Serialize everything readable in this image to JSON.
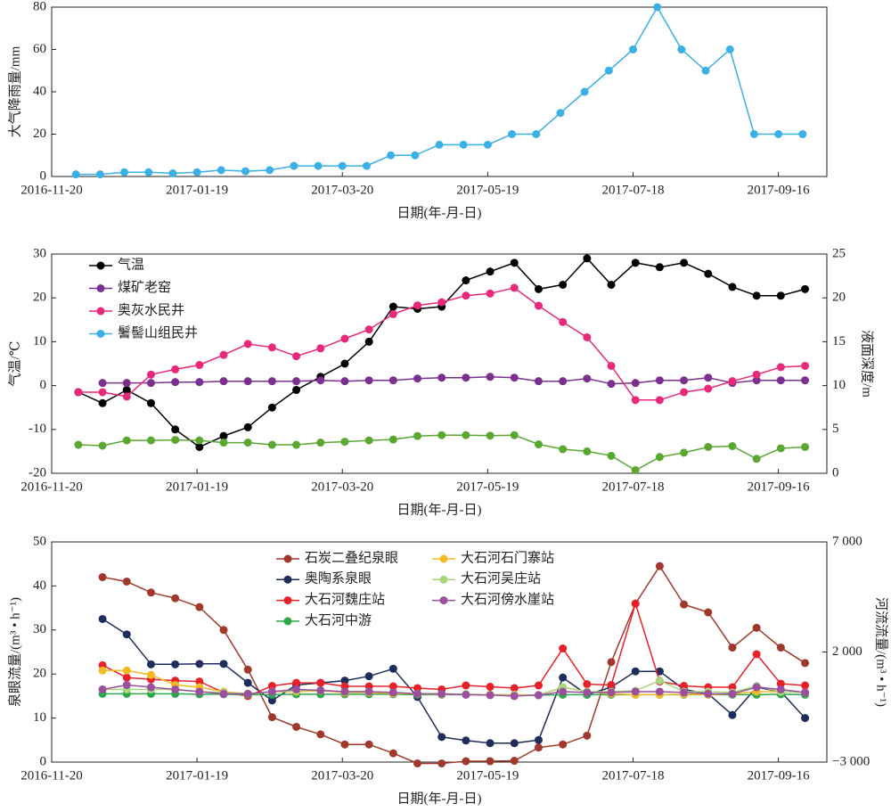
{
  "chart_data": [
    {
      "type": "line",
      "ylabel": "大气降雨量/mm",
      "xlabel": "日期(年-月-日)",
      "x": [
        "2016-11-30",
        "2016-12-10",
        "2016-12-20",
        "2016-12-30",
        "2017-01-09",
        "2017-01-19",
        "2017-01-29",
        "2017-02-08",
        "2017-02-18",
        "2017-02-28",
        "2017-03-10",
        "2017-03-20",
        "2017-03-30",
        "2017-04-09",
        "2017-04-19",
        "2017-04-29",
        "2017-05-09",
        "2017-05-19",
        "2017-05-29",
        "2017-06-08",
        "2017-06-18",
        "2017-06-28",
        "2017-07-08",
        "2017-07-18",
        "2017-07-28",
        "2017-08-07",
        "2017-08-17",
        "2017-08-27",
        "2017-09-06",
        "2017-09-16",
        "2017-09-26"
      ],
      "values": [
        1,
        1,
        2,
        2,
        1.5,
        2,
        3,
        2.5,
        3,
        5,
        5,
        5,
        5,
        10,
        10,
        15,
        15,
        15,
        20,
        20,
        30,
        40,
        50,
        60,
        80,
        60,
        50,
        60,
        20,
        20,
        20
      ],
      "color": "#3bb0e6",
      "xlim": [
        "2016-11-20",
        "2017-10-06"
      ],
      "xticks": [
        "2016-11-20",
        "2017-01-19",
        "2017-03-20",
        "2017-05-19",
        "2017-07-18",
        "2017-09-16"
      ],
      "ylim": [
        0,
        80
      ],
      "yticks": [
        0,
        20,
        40,
        60,
        80
      ]
    },
    {
      "type": "line",
      "ylabel": "气温/℃",
      "y2label": "液面深度/m",
      "xlabel": "日期(年-月-日)",
      "legend": "upper left",
      "x": [
        "2016-12-01",
        "2016-12-11",
        "2016-12-21",
        "2016-12-31",
        "2017-01-10",
        "2017-01-20",
        "2017-01-30",
        "2017-02-09",
        "2017-02-19",
        "2017-03-01",
        "2017-03-11",
        "2017-03-21",
        "2017-03-31",
        "2017-04-10",
        "2017-04-20",
        "2017-04-30",
        "2017-05-10",
        "2017-05-20",
        "2017-05-30",
        "2017-06-09",
        "2017-06-19",
        "2017-06-29",
        "2017-07-09",
        "2017-07-19",
        "2017-07-29",
        "2017-08-08",
        "2017-08-18",
        "2017-08-28",
        "2017-09-07",
        "2017-09-17",
        "2017-09-27"
      ],
      "series": [
        {
          "name": "气温",
          "color": "#000000",
          "values": [
            -1.5,
            -4,
            -1,
            -4,
            -10,
            -14,
            -11.5,
            -9.5,
            -5,
            -1,
            2,
            5,
            10,
            18,
            17.5,
            18,
            24,
            26,
            28,
            22,
            23,
            29,
            23,
            28,
            27,
            28,
            25.5,
            22.5,
            20.5,
            20.5,
            22
          ]
        },
        {
          "name": "煤矿老窑",
          "color": "#7b2f8e",
          "axis": "y2",
          "values": [
            null,
            10.3,
            10.3,
            10.3,
            10.4,
            10.4,
            10.5,
            10.5,
            10.5,
            10.5,
            10.6,
            10.5,
            10.6,
            10.6,
            10.8,
            10.9,
            10.9,
            11,
            10.9,
            10.5,
            10.5,
            10.8,
            10.2,
            10.3,
            10.6,
            10.6,
            10.9,
            10.3,
            10.6,
            10.6,
            10.6
          ]
        },
        {
          "name": "奥灰水民井",
          "color": "#e8287a",
          "axis": "y2",
          "values": [
            9.25,
            9.25,
            8.75,
            11.25,
            11.85,
            12.35,
            13.5,
            14.75,
            14.35,
            13.35,
            14.25,
            15.35,
            16.4,
            18.15,
            19.15,
            19.5,
            20.25,
            20.5,
            21.15,
            19.1,
            17.25,
            15.5,
            12.25,
            8.35,
            8.35,
            9.25,
            9.65,
            10.5,
            11.25,
            12.1,
            12.25
          ]
        },
        {
          "name": "鬐髻山组民井",
          "color": "#5aa832",
          "legend_color": "#3bb0e6",
          "axis": "y2",
          "values": [
            3.25,
            3.15,
            3.75,
            3.75,
            3.8,
            3.75,
            3.5,
            3.5,
            3.25,
            3.25,
            3.5,
            3.6,
            3.75,
            3.85,
            4.25,
            4.35,
            4.35,
            4.3,
            4.35,
            3.3,
            2.75,
            2.5,
            2,
            0.35,
            1.85,
            2.35,
            3,
            3.1,
            1.65,
            2.85,
            3
          ]
        }
      ],
      "xlim": [
        "2016-11-20",
        "2017-10-06"
      ],
      "xticks": [
        "2016-11-20",
        "2017-01-19",
        "2017-03-20",
        "2017-05-19",
        "2017-07-18",
        "2017-09-16"
      ],
      "ylim": [
        -20,
        30
      ],
      "yticks": [
        -20,
        -10,
        0,
        10,
        20,
        30
      ],
      "y2lim": [
        0,
        25
      ],
      "y2ticks": [
        0,
        5,
        10,
        15,
        20,
        25
      ]
    },
    {
      "type": "line",
      "ylabel": "泉眼流量/(m³ • h⁻¹)",
      "y2label": "河流流量/(m³ • h⁻¹)",
      "xlabel": "日期(年-月-日)",
      "legend": "upper center",
      "x": [
        "2016-12-01",
        "2016-12-11",
        "2016-12-21",
        "2016-12-31",
        "2017-01-10",
        "2017-01-20",
        "2017-01-30",
        "2017-02-09",
        "2017-02-19",
        "2017-03-01",
        "2017-03-11",
        "2017-03-21",
        "2017-03-31",
        "2017-04-10",
        "2017-04-20",
        "2017-04-30",
        "2017-05-10",
        "2017-05-20",
        "2017-05-30",
        "2017-06-09",
        "2017-06-19",
        "2017-06-29",
        "2017-07-09",
        "2017-07-19",
        "2017-07-29",
        "2017-08-08",
        "2017-08-18",
        "2017-08-28",
        "2017-09-07",
        "2017-09-17",
        "2017-09-27"
      ],
      "series": [
        {
          "name": "石炭二叠纪泉眼",
          "color": "#a0392b",
          "values": [
            null,
            42,
            41,
            38.5,
            37.2,
            35.2,
            30,
            21,
            10.2,
            8,
            6.3,
            4,
            4,
            2,
            -0.3,
            -0.3,
            0.2,
            0.2,
            0.3,
            3.3,
            4,
            6,
            22.7,
            36,
            44.5,
            35.8,
            34,
            26,
            30.5,
            26,
            22.5
          ]
        },
        {
          "name": "奥陶系泉眼",
          "color": "#1f2d5c",
          "values": [
            null,
            32.5,
            29,
            22.2,
            22.2,
            22.3,
            22.3,
            18,
            14,
            17.5,
            18,
            18.5,
            19.5,
            21.2,
            14.8,
            5.7,
            4.9,
            4.3,
            4.3,
            5,
            19.2,
            15.3,
            17,
            20.6,
            20.6,
            16.5,
            15.5,
            10.7,
            17,
            16,
            10
          ]
        },
        {
          "name": "大石河魏庄站",
          "color": "#e8202a",
          "axis": "y2",
          "values": [
            null,
            1400,
            840,
            760,
            700,
            660,
            160,
            0,
            460,
            600,
            600,
            440,
            440,
            440,
            360,
            300,
            480,
            420,
            360,
            480,
            2160,
            540,
            500,
            4200,
            660,
            460,
            400,
            400,
            1900,
            560,
            480
          ]
        },
        {
          "name": "大石河中游",
          "color": "#2aa84a",
          "axis": "y2",
          "values": [
            null,
            100,
            100,
            100,
            100,
            80,
            80,
            60,
            60,
            80,
            80,
            80,
            80,
            80,
            60,
            60,
            60,
            60,
            40,
            40,
            60,
            60,
            60,
            60,
            60,
            60,
            60,
            60,
            60,
            80,
            60
          ]
        },
        {
          "name": "大石河石门寨站",
          "color": "#f5b922",
          "axis": "y2",
          "values": [
            null,
            1160,
            1160,
            960,
            500,
            400,
            200,
            100,
            200,
            200,
            240,
            160,
            160,
            120,
            100,
            80,
            80,
            60,
            60,
            40,
            400,
            200,
            100,
            60,
            60,
            80,
            60,
            100,
            200,
            200,
            160
          ]
        },
        {
          "name": "大石河吴庄站",
          "color": "#a8d67a",
          "axis": "y2",
          "values": [
            null,
            300,
            300,
            300,
            300,
            200,
            160,
            100,
            200,
            240,
            260,
            200,
            200,
            160,
            100,
            100,
            80,
            60,
            40,
            40,
            400,
            200,
            200,
            240,
            700,
            200,
            200,
            160,
            460,
            200,
            160
          ]
        },
        {
          "name": "大石河傍水崖站",
          "color": "#9b4f9e",
          "axis": "y2",
          "values": [
            null,
            300,
            500,
            400,
            300,
            200,
            100,
            100,
            200,
            300,
            260,
            200,
            200,
            160,
            100,
            100,
            60,
            40,
            0,
            40,
            200,
            160,
            160,
            200,
            200,
            160,
            100,
            100,
            400,
            300,
            160
          ]
        }
      ],
      "xlim": [
        "2016-11-20",
        "2017-10-06"
      ],
      "xticks": [
        "2016-11-20",
        "2017-01-19",
        "2017-03-20",
        "2017-05-19",
        "2017-07-18",
        "2017-09-16"
      ],
      "ylim": [
        0,
        50
      ],
      "yticks": [
        0,
        10,
        20,
        30,
        40,
        50
      ],
      "y2lim": [
        -3000,
        7000
      ],
      "y2ticks": [
        {
          "value": -3000,
          "label": "−3 000"
        },
        {
          "value": 2000,
          "label": "2 000"
        },
        {
          "value": 7000,
          "label": "7 000"
        }
      ]
    }
  ]
}
